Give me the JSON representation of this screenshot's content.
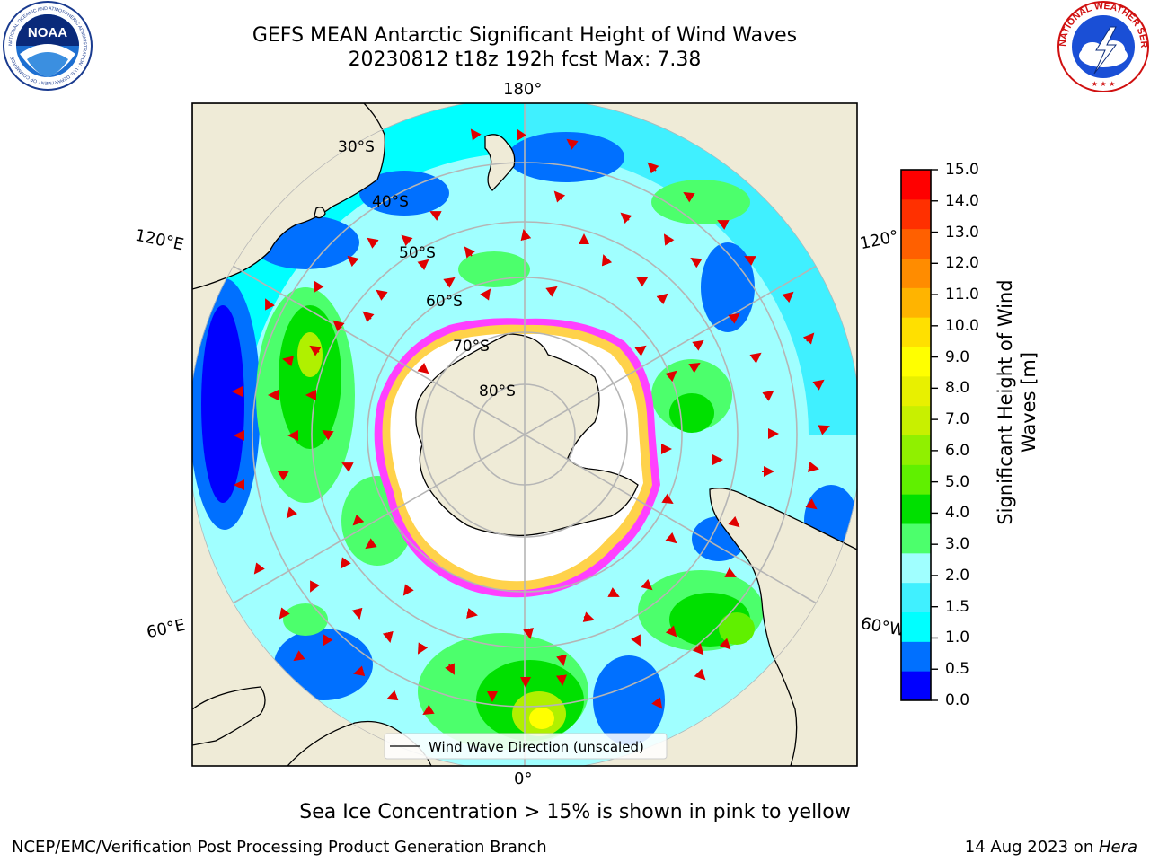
{
  "header": {
    "title_line1": "GEFS MEAN Antarctic Significant Height of Wind Waves",
    "title_line2": "20230812 t18z 192h fcst   Max: 7.38"
  },
  "logos": {
    "noaa_text": "NOAA",
    "noaa_ring": "NATIONAL OCEANIC AND ATMOSPHERIC ADMINISTRATION · U.S. DEPARTMENT OF COMMERCE",
    "nws_ring": "NATIONAL WEATHER SERVICE"
  },
  "map": {
    "projection": "south-polar-stereographic",
    "longitude_labels": {
      "top": "180°",
      "left_upper": "120°E",
      "right_upper": "120°",
      "left_lower": "60°E",
      "right_lower": "60°W",
      "bottom": "0°"
    },
    "latitude_labels": [
      "30°S",
      "40°S",
      "50°S",
      "60°S",
      "70°S",
      "80°S"
    ],
    "legend": "Wind Wave Direction (unscaled)",
    "colors": {
      "land": "#efebd7",
      "ice_edge_inner": "#ff40ff",
      "ice_edge_outer": "#ffd24a",
      "arrow": "#e00000",
      "grid": "#b5b5b5"
    },
    "zones_description_colors": [
      "#0000ff",
      "#0070ff",
      "#00ffff",
      "#40f0ff",
      "#a0ffff",
      "#4cff6c",
      "#00e000",
      "#60f000",
      "#b0f000",
      "#ffff00"
    ]
  },
  "colorbar": {
    "ticks": [
      "15.0",
      "14.0",
      "13.0",
      "12.0",
      "11.0",
      "10.0",
      "9.0",
      "8.0",
      "7.0",
      "6.0",
      "5.0",
      "4.0",
      "3.0",
      "2.0",
      "1.5",
      "1.0",
      "0.5",
      "0.0"
    ],
    "colors_bottom_to_top": [
      "#0000ff",
      "#0070ff",
      "#00ffff",
      "#40f0ff",
      "#a0ffff",
      "#4cff6c",
      "#00e000",
      "#60f000",
      "#90f000",
      "#c8f000",
      "#e8f000",
      "#ffff00",
      "#ffe000",
      "#ffb400",
      "#ff8c00",
      "#ff6000",
      "#ff3000",
      "#ff0000"
    ],
    "label_line1": "Significant Height of Wind",
    "label_line2": "Waves [m]"
  },
  "notes": {
    "sea_ice": "Sea Ice Concentration > 15% is shown in pink to yellow"
  },
  "footer": {
    "left": "NCEP/EMC/Verification Post Processing Product Generation Branch",
    "right_prefix": "14 Aug 2023 on ",
    "right_machine": "Hera"
  }
}
